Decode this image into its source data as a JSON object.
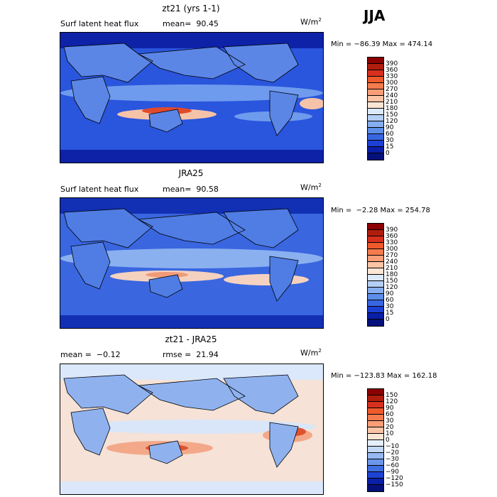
{
  "season": "JJA",
  "panels": [
    {
      "title": "zt21 (yrs 1-1)",
      "subtitle_left": "Surf latent heat flux",
      "subtitle_right": "mean=  90.45",
      "units_base": "W/m",
      "units_exp": "2",
      "minmax": "Min = −86.39 Max = 474.14",
      "colorbar": {
        "labels": [
          "390",
          "360",
          "330",
          "300",
          "270",
          "240",
          "210",
          "180",
          "150",
          "120",
          "90",
          "60",
          "30",
          "15",
          "0"
        ],
        "colors": [
          "#8b0000",
          "#b01d0d",
          "#d7301f",
          "#ef5a2d",
          "#f47b4e",
          "#f99e78",
          "#fcc3a5",
          "#fde5d5",
          "#dbe9fa",
          "#b4cef5",
          "#86adef",
          "#5c8de8",
          "#3866e0",
          "#1d40d4",
          "#0b1ea8",
          "#05107a"
        ]
      },
      "map_colors": {
        "ocean": "#2a55dd",
        "mid": "#6f9bee",
        "high": "#f7c3a8",
        "peak": "#e04a2b",
        "land": "#5b86e6",
        "polar": "#0e22a8"
      }
    },
    {
      "title": "JRA25",
      "subtitle_left": "Surf latent heat flux",
      "subtitle_right": "mean=  90.58",
      "units_base": "W/m",
      "units_exp": "2",
      "minmax": "Min =  −2.28 Max = 254.78",
      "colorbar": {
        "labels": [
          "390",
          "360",
          "330",
          "300",
          "270",
          "240",
          "210",
          "180",
          "150",
          "120",
          "90",
          "60",
          "30",
          "15",
          "0"
        ],
        "colors": [
          "#8b0000",
          "#b01d0d",
          "#d7301f",
          "#ef5a2d",
          "#f47b4e",
          "#f99e78",
          "#fcc3a5",
          "#fde5d5",
          "#dbe9fa",
          "#b4cef5",
          "#86adef",
          "#5c8de8",
          "#3866e0",
          "#1d40d4",
          "#0b1ea8",
          "#05107a"
        ]
      },
      "map_colors": {
        "ocean": "#3a66e0",
        "mid": "#8ab0ef",
        "high": "#f5d2bf",
        "peak": "#f19a77",
        "land": "#4f7de4",
        "polar": "#1230b4"
      }
    },
    {
      "title": "zt21 - JRA25",
      "subtitle_left": "mean =  −0.12",
      "subtitle_right": "rmse =  21.94",
      "units_base": "W/m",
      "units_exp": "2",
      "minmax": "Min = −123.83 Max = 162.18",
      "colorbar": {
        "labels": [
          "150",
          "120",
          "90",
          "60",
          "30",
          "20",
          "10",
          "0",
          "−10",
          "−20",
          "−30",
          "−60",
          "−90",
          "−120",
          "−150"
        ],
        "colors": [
          "#8b0000",
          "#b01d0d",
          "#d7301f",
          "#ef5a2d",
          "#f47b4e",
          "#f99e78",
          "#fcc3a5",
          "#fde5d5",
          "#e5eefb",
          "#c3d7f6",
          "#97b8f0",
          "#6c96e9",
          "#3f6ee1",
          "#1e43d3",
          "#0b1ea8",
          "#05107a"
        ]
      },
      "map_colors": {
        "ocean": "#f6e2d6",
        "mid": "#d9e6fa",
        "high": "#f4a88a",
        "peak": "#e0522e",
        "land": "#8fb2ef",
        "polar": "#dbe8fb"
      }
    }
  ]
}
